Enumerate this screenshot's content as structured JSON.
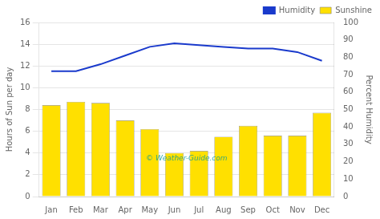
{
  "chart_data": {
    "type": "bar",
    "categories": [
      "Jan",
      "Feb",
      "Mar",
      "Apr",
      "May",
      "Jun",
      "Jul",
      "Aug",
      "Sep",
      "Oct",
      "Nov",
      "Dec"
    ],
    "series": [
      {
        "name": "Sunshine",
        "type": "bar",
        "color": "#FFE000",
        "values": [
          8.4,
          8.7,
          8.6,
          7.0,
          6.2,
          4.0,
          4.2,
          5.5,
          6.5,
          5.6,
          5.6,
          7.7
        ]
      },
      {
        "name": "Humidity",
        "type": "line",
        "color": "#1a3acc",
        "axis": "y2",
        "values": [
          72,
          72,
          76,
          81,
          86,
          88,
          87,
          86,
          85,
          85,
          83,
          78
        ]
      }
    ],
    "ylabel": "Hours of Sun per day",
    "y2label": "Percent Humidity",
    "ylim": [
      0,
      16
    ],
    "yticks": [
      0,
      2,
      4,
      6,
      8,
      10,
      12,
      14,
      16
    ],
    "y2lim": [
      0,
      100
    ],
    "y2ticks": [
      0,
      10,
      20,
      30,
      40,
      50,
      60,
      70,
      80,
      90,
      100
    ],
    "grid": true,
    "legend": "upper right",
    "annotations": [
      "© Weather-Guide.com"
    ]
  }
}
